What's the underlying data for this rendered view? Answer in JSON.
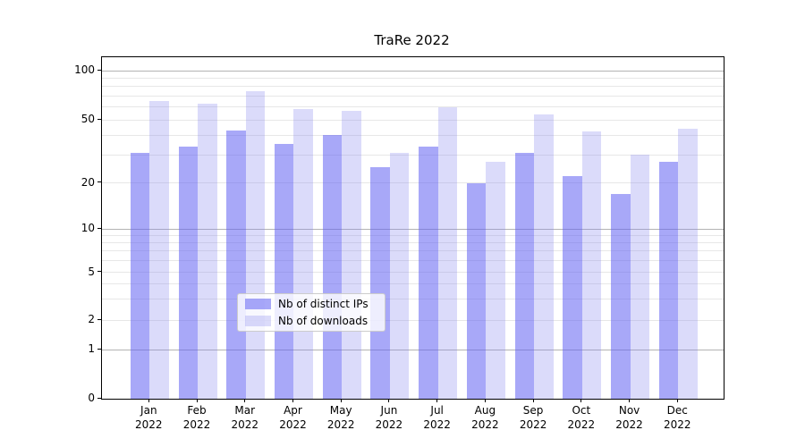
{
  "chart_data": {
    "type": "bar",
    "title": "TraRe 2022",
    "categories": [
      "Jan",
      "Feb",
      "Mar",
      "Apr",
      "May",
      "Jun",
      "Jul",
      "Aug",
      "Sep",
      "Oct",
      "Nov",
      "Dec"
    ],
    "category_year_suffix": "2022",
    "series": [
      {
        "name": "Nb of distinct IPs",
        "color": "#a8a8f0",
        "color_rgba": "rgba(97,97,242,0.55)",
        "values": [
          31,
          34,
          43,
          35,
          40,
          25,
          34,
          20,
          31,
          22,
          17,
          27
        ]
      },
      {
        "name": "Nb of downloads",
        "color": "#dbdbfa",
        "color_rgba": "rgba(135,135,238,0.30)",
        "values": [
          65,
          63,
          75,
          58,
          57,
          31,
          60,
          27,
          54,
          42,
          30,
          44
        ]
      }
    ],
    "xlabel": "",
    "ylabel": "",
    "yscale": "symlog",
    "ylim": [
      0,
      121
    ],
    "yticks": [
      100,
      50,
      20,
      10,
      5,
      2,
      1,
      0
    ],
    "y_major_gridlines": [
      100,
      10,
      1
    ],
    "y_minor_gridlines": [
      90,
      80,
      70,
      60,
      50,
      40,
      30,
      20,
      9,
      8,
      7,
      6,
      5,
      4,
      3,
      2
    ],
    "grid": "both",
    "legend_position": "lower center",
    "colors": {
      "major_grid": "#b3b3b3",
      "minor_grid": "#e7e7e7",
      "spine": "#000000",
      "text": "#000000",
      "legend_border": "#cccccc",
      "background": "#ffffff"
    }
  }
}
